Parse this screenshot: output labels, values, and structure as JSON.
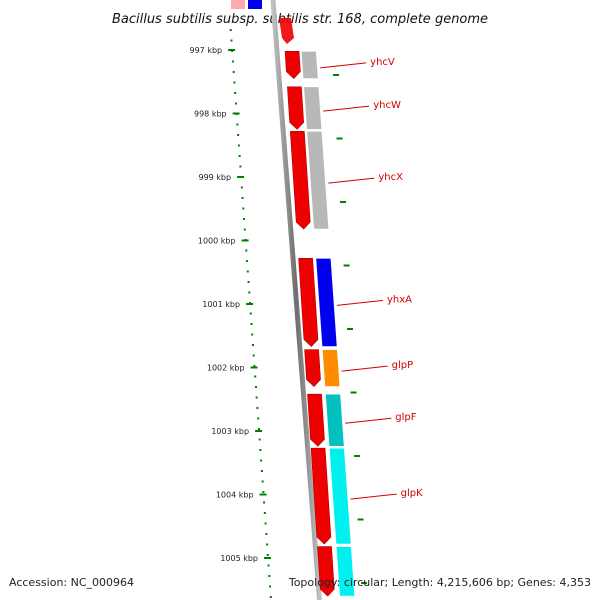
{
  "title": "Bacillus subtilis subsp. subtilis str. 168, complete genome",
  "footer": {
    "accession": "Accession: NC_000964",
    "topology": "Topology: circular; Length: 4,215,606 bp; Genes: 4,353"
  },
  "ticks": [
    {
      "label": "997 kbp",
      "kbp": 997
    },
    {
      "label": "998 kbp",
      "kbp": 998
    },
    {
      "label": "999 kbp",
      "kbp": 999
    },
    {
      "label": "1000 kbp",
      "kbp": 1000
    },
    {
      "label": "1001 kbp",
      "kbp": 1001
    },
    {
      "label": "1002 kbp",
      "kbp": 1002
    },
    {
      "label": "1003 kbp",
      "kbp": 1003
    },
    {
      "label": "1004 kbp",
      "kbp": 1004
    },
    {
      "label": "1005 kbp",
      "kbp": 1005
    }
  ],
  "genes": [
    {
      "name": "yhcV",
      "start_kbp": 997.02,
      "end_kbp": 997.45,
      "strand": "-",
      "color": "#b8b8b8"
    },
    {
      "name": "yhcW",
      "start_kbp": 997.58,
      "end_kbp": 998.25,
      "strand": "-",
      "color": "#b8b8b8"
    },
    {
      "name": "yhcX",
      "start_kbp": 998.28,
      "end_kbp": 999.82,
      "strand": "-",
      "color": "#b8b8b8"
    },
    {
      "name": "yhxA",
      "start_kbp": 1000.28,
      "end_kbp": 1001.67,
      "strand": "-",
      "color": "#0000ee"
    },
    {
      "name": "glpP",
      "start_kbp": 1001.72,
      "end_kbp": 1002.3,
      "strand": "-",
      "color": "#ff8c00"
    },
    {
      "name": "glpF",
      "start_kbp": 1002.42,
      "end_kbp": 1003.24,
      "strand": "-",
      "color": "#00c0c0"
    },
    {
      "name": "glpK",
      "start_kbp": 1003.27,
      "end_kbp": 1004.78,
      "strand": "-",
      "color": "#00f0f0"
    },
    {
      "name": "",
      "start_kbp": 1004.82,
      "end_kbp": 1005.6,
      "strand": "-",
      "color": "#00f0f0"
    }
  ],
  "partial_top_genes": [
    {
      "color": "#0000ee"
    },
    {
      "color": "#ffaaaa"
    }
  ],
  "colors": {
    "backbone": "#8a8a8a",
    "strand_arrow": "#ee0000",
    "tick": "#008000",
    "label": "#d40000"
  }
}
